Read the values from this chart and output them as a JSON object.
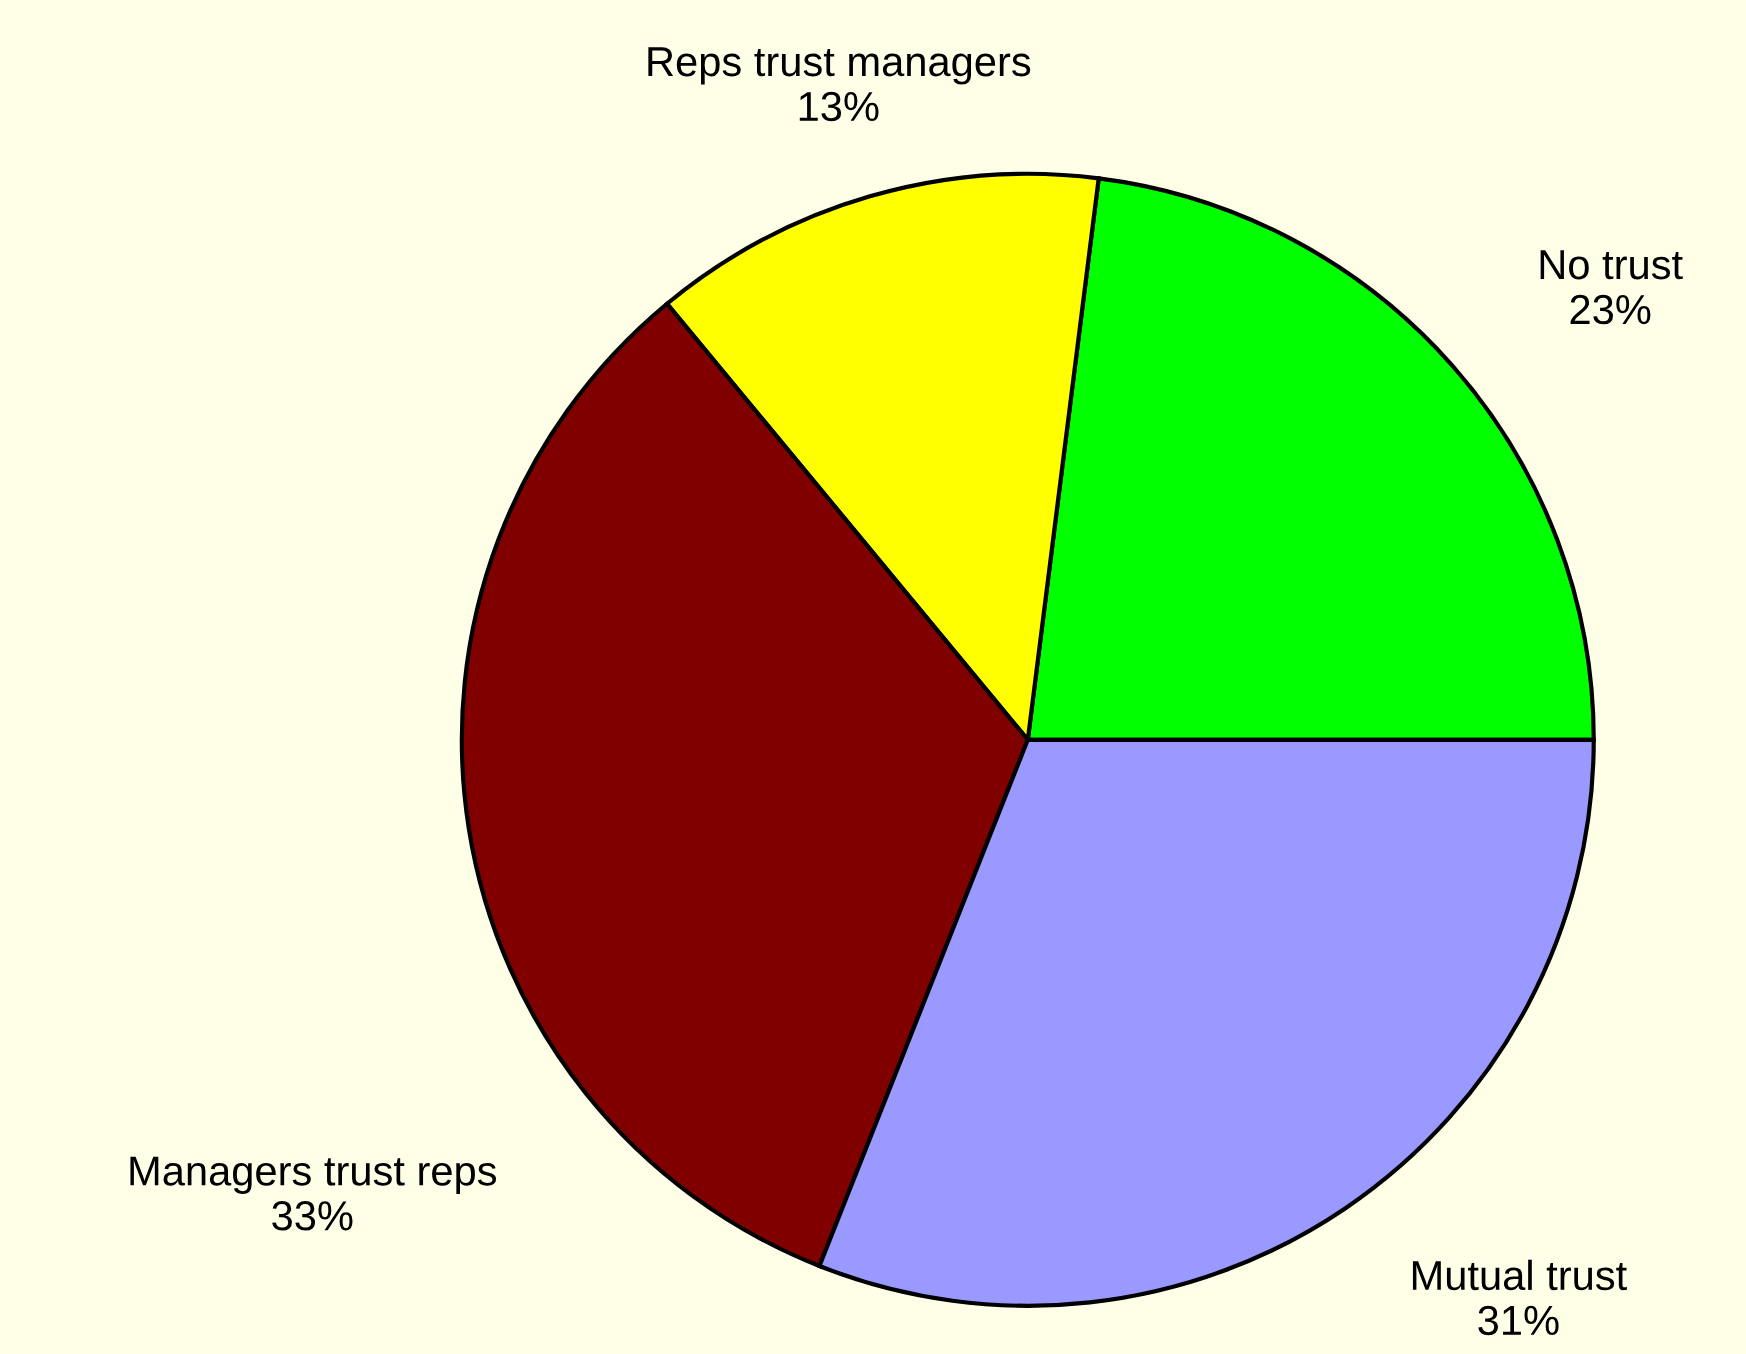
{
  "chart_data": {
    "type": "pie",
    "categories": [
      "No trust",
      "Reps trust managers",
      "Managers trust reps",
      "Mutual trust"
    ],
    "values": [
      23,
      13,
      33,
      31
    ],
    "value_labels": [
      "23%",
      "13%",
      "33%",
      "31%"
    ],
    "colors": [
      "#00ff00",
      "#ffff00",
      "#800000",
      "#9999ff"
    ]
  }
}
